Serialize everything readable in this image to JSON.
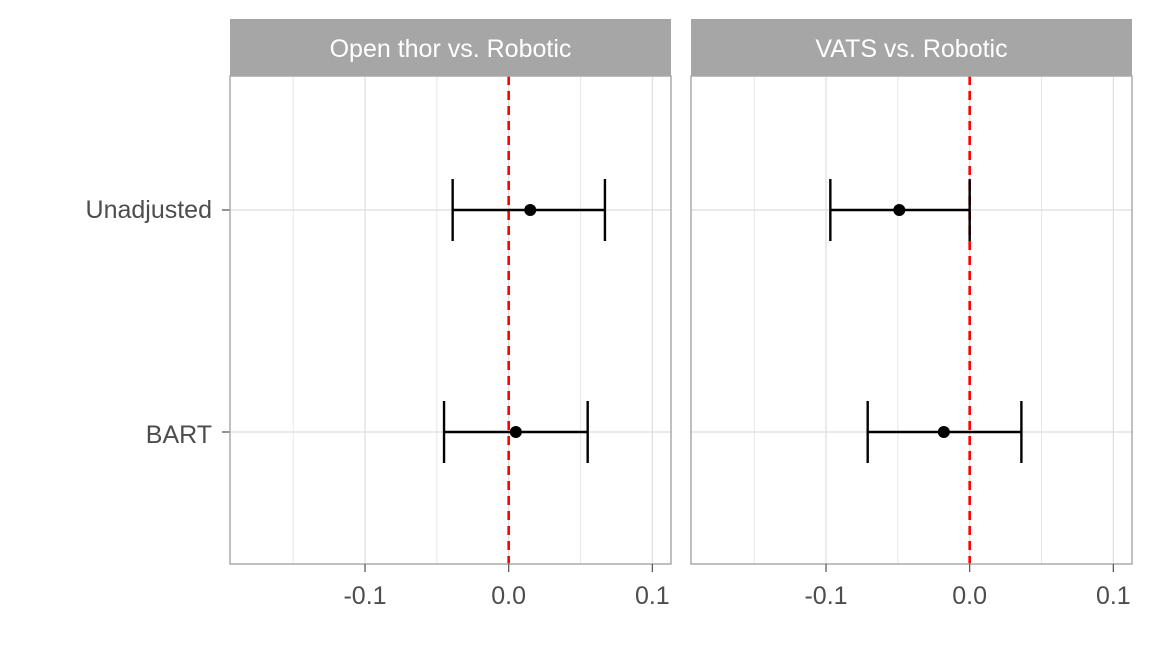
{
  "chart_data": {
    "type": "forest-plot",
    "panels": [
      {
        "title": "Open thor vs. Robotic",
        "rows": [
          {
            "label": "Unadjusted",
            "estimate": 0.015,
            "lower": -0.039,
            "upper": 0.067
          },
          {
            "label": "BART",
            "estimate": 0.005,
            "lower": -0.045,
            "upper": 0.055
          }
        ]
      },
      {
        "title": "VATS vs. Robotic",
        "rows": [
          {
            "label": "Unadjusted",
            "estimate": -0.049,
            "lower": -0.097,
            "upper": 0.0
          },
          {
            "label": "BART",
            "estimate": -0.018,
            "lower": -0.071,
            "upper": 0.036
          }
        ]
      }
    ],
    "y_categories": [
      "Unadjusted",
      "BART"
    ],
    "x_ticks": [
      "-0.1",
      "0.0",
      "0.1"
    ],
    "x_tick_values": [
      -0.1,
      0.0,
      0.1
    ],
    "xlim": [
      -0.194,
      0.113
    ],
    "reference_line": 0,
    "reference_line_style": "dashed",
    "colors": {
      "reference_line": "#ff0000",
      "points": "#000000",
      "strip": "#a6a6a6",
      "strip_text": "#ffffff",
      "grid": "#dedede",
      "panel_border": "#a6a6a6",
      "tick_text": "#4d4d4d"
    },
    "grid": true,
    "legend": "none"
  }
}
